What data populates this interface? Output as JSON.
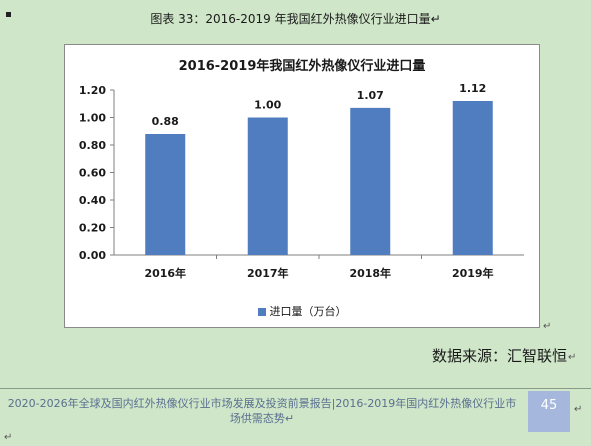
{
  "caption": "图表 33：2016-2019 年我国红外热像仪行业进口量↵",
  "chart_data": {
    "type": "bar",
    "title": "2016-2019年我国红外热像仪行业进口量",
    "categories": [
      "2016年",
      "2017年",
      "2018年",
      "2019年"
    ],
    "series": [
      {
        "name": "进口量（万台）",
        "values": [
          0.88,
          1.0,
          1.07,
          1.12
        ]
      }
    ],
    "data_labels": [
      "0.88",
      "1.00",
      "1.07",
      "1.12"
    ],
    "y_ticks": [
      "1.20",
      "1.00",
      "0.80",
      "0.60",
      "0.40",
      "0.20",
      "0.00"
    ],
    "ylim": [
      0,
      1.2
    ],
    "grid": false,
    "legend_position": "bottom",
    "bar_color": "#4f7dbf"
  },
  "chart_paragraph_mark": "↵",
  "source": "数据来源：汇智联恒",
  "source_mark": "↵",
  "footer": {
    "text": "2020-2026年全球及国内红外热像仪行业市场发展及投资前景报告|2016-2019年国内红外热像仪行业市场供需态势↵",
    "page_number": "45",
    "page_mark": "↵"
  },
  "end_mark": "↵"
}
